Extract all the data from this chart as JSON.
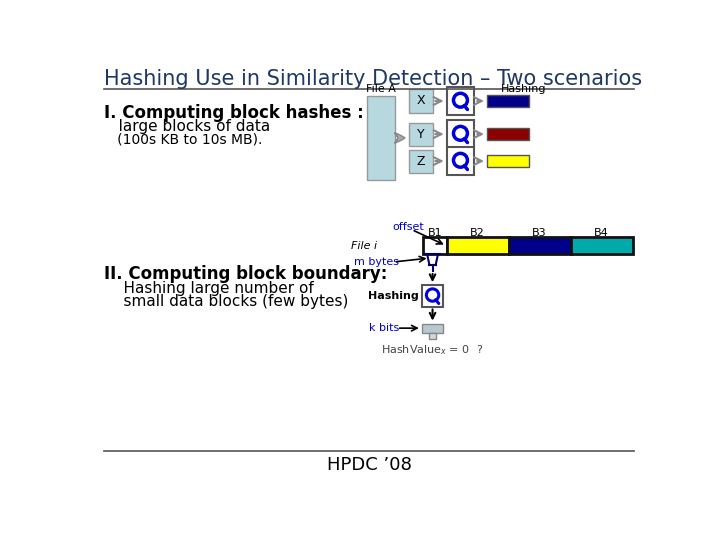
{
  "title": "Hashing Use in Similarity Detection – Two scenarios",
  "title_color": "#1F3864",
  "title_fontsize": 15,
  "bg_color": "#ffffff",
  "footer": "HPDC ’08",
  "section1_bold": "I. Computing block hashes :",
  "section1_line2": "   large blocks of data",
  "section1_line3": "   (100s KB to 10s MB).",
  "section2_bold": "II. Computing block boundary:",
  "section2_line2": "    Hashing large number of",
  "section2_line3": "    small data blocks (few bytes)",
  "file_a_color": "#b8d8e0",
  "block_xyz_color": "#b8d8e0",
  "hash_box_edge": "#555555",
  "hash_colors": [
    "#00008B",
    "#8B0000",
    "#FFFF00"
  ],
  "b1_color": "#ffffff",
  "b2_color": "#FFFF00",
  "b3_color": "#00008B",
  "b4_color": "#00AAAA",
  "arrow_gray": "#888888",
  "blue_label": "#0000CC"
}
